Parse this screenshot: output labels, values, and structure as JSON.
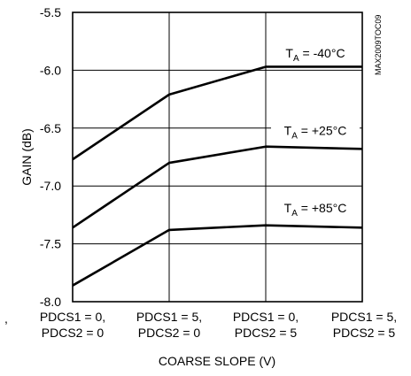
{
  "chart_data": {
    "type": "line",
    "title": "",
    "xlabel": "COARSE SLOPE (V)",
    "ylabel": "GAIN (dB)",
    "ylim": [
      -8.0,
      -5.5
    ],
    "yticks": [
      "-5.5",
      "-6.0",
      "-6.5",
      "-7.0",
      "-7.5",
      "-8.0"
    ],
    "ytick_values": [
      -5.5,
      -6.0,
      -6.5,
      -7.0,
      -7.5,
      -8.0
    ],
    "categories": [
      [
        "PDCS1 = 0,",
        "PDCS2 = 0"
      ],
      [
        "PDCS1 = 5,",
        "PDCS2 = 0"
      ],
      [
        "PDCS1 = 0,",
        "PDCS2 = 5"
      ],
      [
        "PDCS1 = 5,",
        "PDCS2 = 5"
      ]
    ],
    "grid": true,
    "side_label": "MAX2009TOC09",
    "series": [
      {
        "label_main": "T",
        "label_sub": "A",
        "label_rest": " = -40°C",
        "values": [
          -6.77,
          -6.21,
          -5.97,
          -5.97
        ]
      },
      {
        "label_main": "T",
        "label_sub": "A",
        "label_rest": " = +25°C",
        "values": [
          -7.36,
          -6.8,
          -6.66,
          -6.68
        ]
      },
      {
        "label_main": "T",
        "label_sub": "A",
        "label_rest": " = +85°C",
        "values": [
          -7.86,
          -7.38,
          -7.34,
          -7.36
        ]
      }
    ],
    "stray_mark": ","
  }
}
